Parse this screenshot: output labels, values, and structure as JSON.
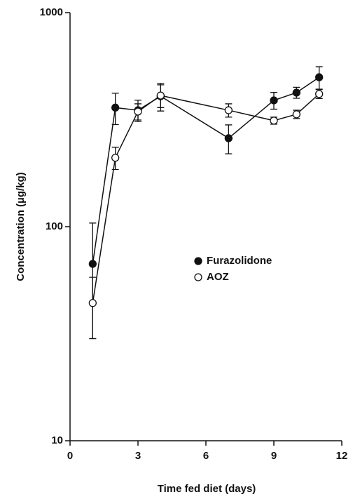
{
  "chart_data": {
    "type": "line",
    "xlabel": "Time fed diet (days)",
    "ylabel": "Concentration (µg/kg)",
    "x": [
      1,
      2,
      3,
      4,
      7,
      9,
      10,
      11
    ],
    "series": [
      {
        "name": "Furazolidone",
        "color": "#111111",
        "marker": "filled",
        "values": [
          67,
          360,
          350,
          407,
          259,
          389,
          423,
          499
        ],
        "errors": [
          37,
          60,
          40,
          60,
          40,
          35,
          25,
          60
        ]
      },
      {
        "name": "AOZ",
        "color": "#111111",
        "marker": "open",
        "values": [
          44,
          210,
          345,
          410,
          350,
          313,
          335,
          417
        ],
        "errors": [
          14,
          25,
          30,
          50,
          25,
          12,
          15,
          20
        ]
      }
    ],
    "xlim": [
      0,
      12
    ],
    "xticks": [
      0,
      3,
      6,
      9,
      12
    ],
    "ylim": [
      10,
      1000
    ],
    "yticks": [
      10,
      100,
      1000
    ],
    "ylog": true
  }
}
